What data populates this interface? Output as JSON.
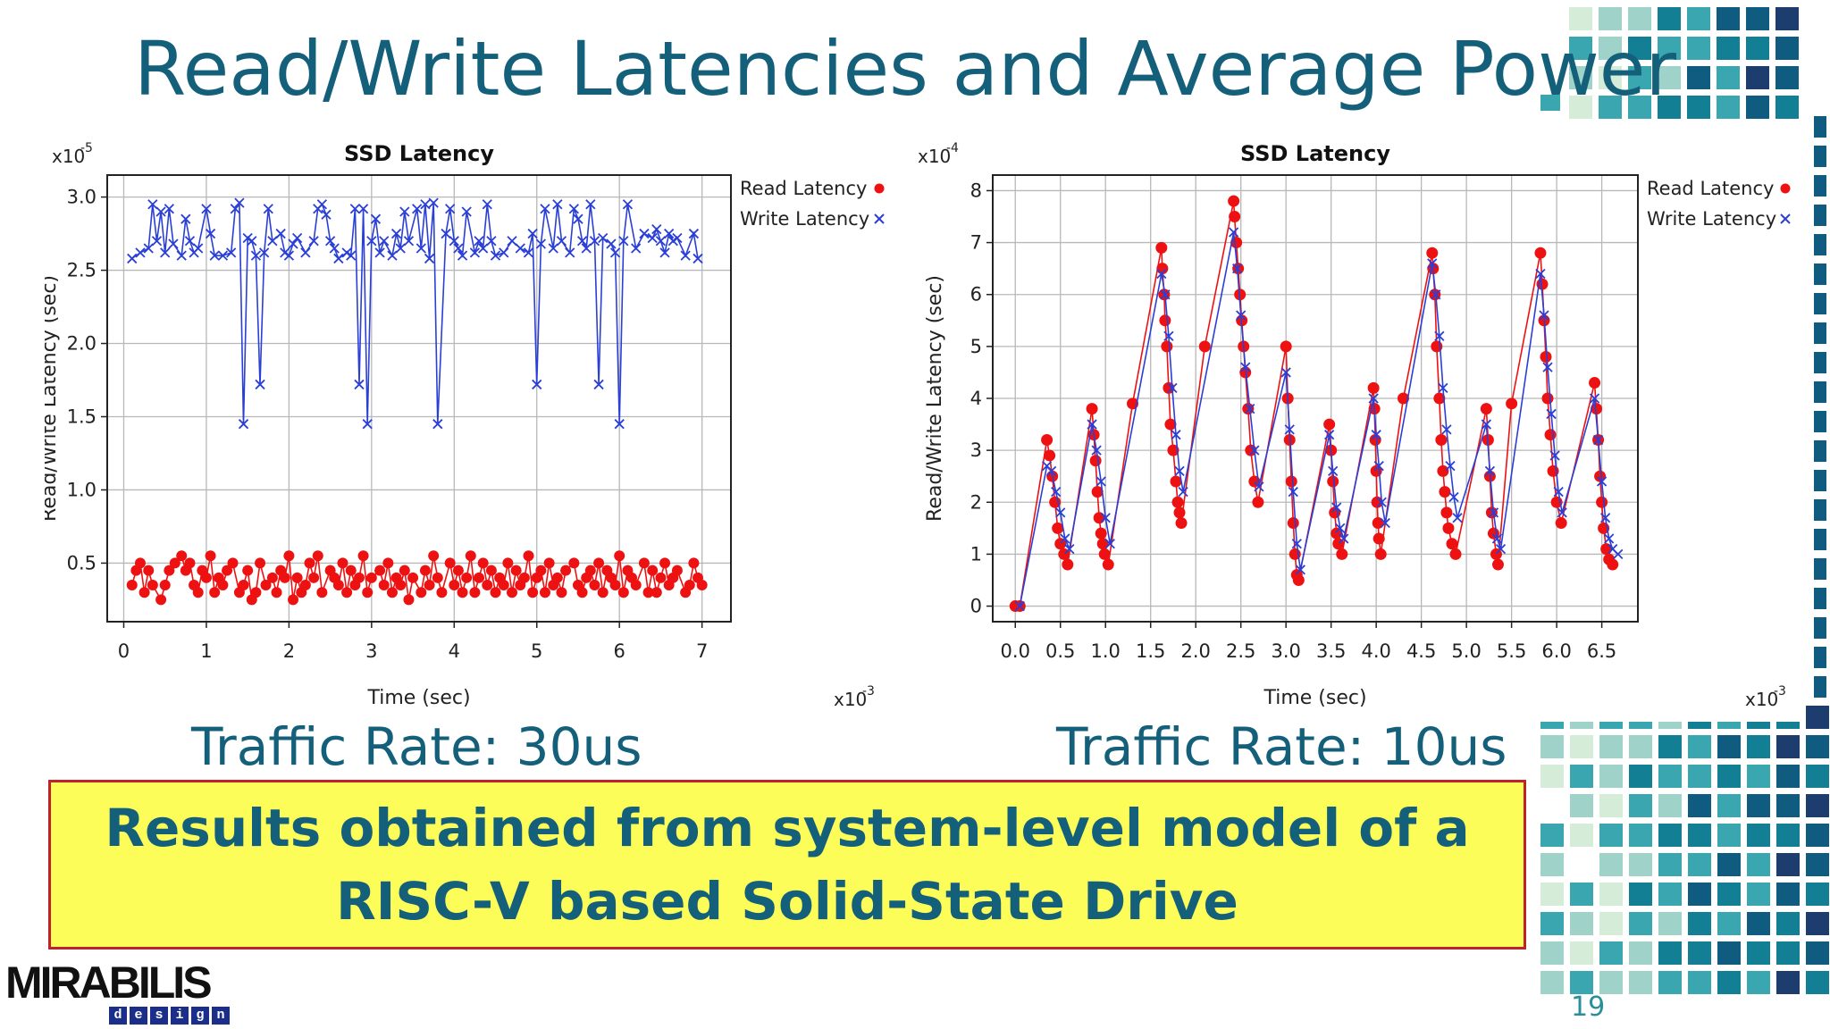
{
  "slide": {
    "title": "Read/Write Latencies and Average Power",
    "caption_left": "Traffic Rate: 30us",
    "caption_right": "Traffic Rate: 10us",
    "banner_text": "Results obtained from system-level model of a RISC-V based Solid-State Drive",
    "logo_text": "MIRABILIS",
    "logo_subtext": [
      "d",
      "e",
      "s",
      "i",
      "g",
      "n"
    ],
    "page_number": "19",
    "colors": {
      "title": "#14607a",
      "banner_bg": "#fdfd5a",
      "banner_border": "#c0222b",
      "read": "#ee1111",
      "write": "#2a3fd6"
    }
  },
  "chart_data": [
    {
      "type": "line",
      "title": "SSD Latency",
      "xlabel": "Time (sec)",
      "ylabel": "Read/Write Latency (sec)",
      "x_multiplier": "x10",
      "x_exponent": "-3",
      "y_multiplier": "x10",
      "y_exponent": "-5",
      "xlim": [
        -0.2,
        7.35
      ],
      "ylim": [
        0.1,
        3.15
      ],
      "xticks": [
        0,
        1,
        2,
        3,
        4,
        5,
        6,
        7
      ],
      "xtick_labels": [
        "0",
        "1",
        "2",
        "3",
        "4",
        "5",
        "6",
        "7"
      ],
      "yticks": [
        0.5,
        1.0,
        1.5,
        2.0,
        2.5,
        3.0
      ],
      "ytick_labels": [
        "0.5",
        "1.0",
        "1.5",
        "2.0",
        "2.5",
        "3.0"
      ],
      "grid": true,
      "legend_position": "right",
      "series": [
        {
          "name": "Read Latency",
          "marker": "dot",
          "color": "#ee1111",
          "x": [
            0.1,
            0.15,
            0.2,
            0.25,
            0.3,
            0.35,
            0.45,
            0.5,
            0.55,
            0.62,
            0.7,
            0.75,
            0.8,
            0.85,
            0.9,
            0.95,
            1.0,
            1.05,
            1.1,
            1.15,
            1.2,
            1.25,
            1.32,
            1.4,
            1.45,
            1.5,
            1.55,
            1.6,
            1.65,
            1.72,
            1.8,
            1.85,
            1.9,
            1.95,
            2.0,
            2.05,
            2.1,
            2.15,
            2.2,
            2.25,
            2.3,
            2.35,
            2.4,
            2.5,
            2.55,
            2.6,
            2.65,
            2.7,
            2.75,
            2.8,
            2.85,
            2.9,
            2.95,
            3.0,
            3.1,
            3.15,
            3.2,
            3.25,
            3.3,
            3.35,
            3.4,
            3.45,
            3.5,
            3.6,
            3.65,
            3.7,
            3.75,
            3.8,
            3.85,
            3.95,
            4.0,
            4.05,
            4.1,
            4.15,
            4.2,
            4.25,
            4.3,
            4.35,
            4.4,
            4.45,
            4.5,
            4.55,
            4.6,
            4.65,
            4.7,
            4.75,
            4.8,
            4.85,
            4.9,
            4.95,
            5.0,
            5.05,
            5.1,
            5.15,
            5.2,
            5.25,
            5.3,
            5.35,
            5.45,
            5.5,
            5.55,
            5.6,
            5.65,
            5.7,
            5.75,
            5.8,
            5.85,
            5.9,
            5.95,
            6.0,
            6.05,
            6.1,
            6.15,
            6.2,
            6.3,
            6.35,
            6.4,
            6.45,
            6.5,
            6.55,
            6.6,
            6.65,
            6.7,
            6.8,
            6.85,
            6.9,
            6.95,
            7.0
          ],
          "y": [
            0.35,
            0.45,
            0.5,
            0.3,
            0.45,
            0.35,
            0.25,
            0.35,
            0.45,
            0.5,
            0.55,
            0.45,
            0.5,
            0.35,
            0.3,
            0.45,
            0.4,
            0.55,
            0.3,
            0.4,
            0.35,
            0.45,
            0.5,
            0.3,
            0.35,
            0.45,
            0.25,
            0.3,
            0.5,
            0.35,
            0.4,
            0.3,
            0.45,
            0.4,
            0.55,
            0.25,
            0.4,
            0.3,
            0.35,
            0.5,
            0.4,
            0.55,
            0.3,
            0.45,
            0.4,
            0.35,
            0.5,
            0.3,
            0.45,
            0.35,
            0.4,
            0.55,
            0.3,
            0.4,
            0.45,
            0.35,
            0.5,
            0.3,
            0.4,
            0.35,
            0.45,
            0.25,
            0.4,
            0.3,
            0.45,
            0.35,
            0.55,
            0.4,
            0.3,
            0.5,
            0.35,
            0.45,
            0.3,
            0.4,
            0.55,
            0.3,
            0.4,
            0.5,
            0.35,
            0.45,
            0.3,
            0.4,
            0.35,
            0.5,
            0.3,
            0.45,
            0.35,
            0.4,
            0.55,
            0.3,
            0.4,
            0.45,
            0.3,
            0.5,
            0.35,
            0.4,
            0.3,
            0.45,
            0.5,
            0.35,
            0.3,
            0.4,
            0.45,
            0.35,
            0.5,
            0.3,
            0.45,
            0.4,
            0.35,
            0.55,
            0.3,
            0.45,
            0.4,
            0.35,
            0.5,
            0.3,
            0.45,
            0.3,
            0.4,
            0.5,
            0.35,
            0.4,
            0.45,
            0.3,
            0.35,
            0.5,
            0.4,
            0.35
          ]
        },
        {
          "name": "Write Latency",
          "marker": "x",
          "color": "#2a3fd6",
          "x": [
            0.1,
            0.2,
            0.3,
            0.35,
            0.4,
            0.45,
            0.5,
            0.55,
            0.6,
            0.7,
            0.75,
            0.8,
            0.85,
            0.9,
            1.0,
            1.05,
            1.1,
            1.2,
            1.3,
            1.35,
            1.4,
            1.45,
            1.5,
            1.55,
            1.6,
            1.65,
            1.7,
            1.75,
            1.8,
            1.9,
            1.95,
            2.0,
            2.05,
            2.1,
            2.2,
            2.3,
            2.35,
            2.4,
            2.45,
            2.5,
            2.55,
            2.6,
            2.7,
            2.75,
            2.8,
            2.85,
            2.9,
            2.95,
            3.0,
            3.05,
            3.1,
            3.15,
            3.25,
            3.3,
            3.35,
            3.4,
            3.45,
            3.55,
            3.6,
            3.65,
            3.7,
            3.75,
            3.8,
            3.9,
            3.95,
            4.0,
            4.05,
            4.1,
            4.15,
            4.25,
            4.3,
            4.35,
            4.4,
            4.45,
            4.5,
            4.6,
            4.7,
            4.8,
            4.9,
            4.95,
            5.0,
            5.05,
            5.1,
            5.2,
            5.25,
            5.3,
            5.4,
            5.45,
            5.5,
            5.55,
            5.6,
            5.65,
            5.7,
            5.75,
            5.8,
            5.9,
            5.95,
            6.0,
            6.05,
            6.1,
            6.2,
            6.3,
            6.4,
            6.45,
            6.5,
            6.55,
            6.6,
            6.65,
            6.7,
            6.8,
            6.9,
            6.95
          ],
          "y": [
            2.58,
            2.62,
            2.65,
            2.95,
            2.7,
            2.9,
            2.62,
            2.92,
            2.68,
            2.6,
            2.85,
            2.7,
            2.62,
            2.65,
            2.92,
            2.75,
            2.6,
            2.6,
            2.62,
            2.92,
            2.96,
            1.45,
            2.72,
            2.7,
            2.6,
            1.72,
            2.62,
            2.92,
            2.7,
            2.75,
            2.62,
            2.6,
            2.68,
            2.72,
            2.62,
            2.7,
            2.92,
            2.95,
            2.88,
            2.7,
            2.65,
            2.58,
            2.62,
            2.6,
            2.92,
            1.72,
            2.92,
            1.45,
            2.7,
            2.85,
            2.62,
            2.7,
            2.6,
            2.75,
            2.65,
            2.9,
            2.7,
            2.92,
            2.65,
            2.95,
            2.58,
            2.96,
            1.45,
            2.75,
            2.92,
            2.7,
            2.65,
            2.6,
            2.9,
            2.62,
            2.7,
            2.65,
            2.95,
            2.7,
            2.6,
            2.62,
            2.7,
            2.65,
            2.62,
            2.75,
            1.72,
            2.68,
            2.92,
            2.65,
            2.95,
            2.7,
            2.62,
            2.92,
            2.85,
            2.7,
            2.65,
            2.95,
            2.7,
            1.72,
            2.72,
            2.68,
            2.62,
            1.45,
            2.7,
            2.95,
            2.65,
            2.75,
            2.72,
            2.78,
            2.7,
            2.62,
            2.75,
            2.7,
            2.72,
            2.6,
            2.75,
            2.58
          ]
        }
      ]
    },
    {
      "type": "line",
      "title": "SSD Latency",
      "xlabel": "Time (sec)",
      "ylabel": "Read/Write Latency (sec)",
      "x_multiplier": "x10",
      "x_exponent": "-3",
      "y_multiplier": "x10",
      "y_exponent": "-4",
      "xlim": [
        -0.25,
        6.9
      ],
      "ylim": [
        -0.3,
        8.3
      ],
      "xticks": [
        0.0,
        0.5,
        1.0,
        1.5,
        2.0,
        2.5,
        3.0,
        3.5,
        4.0,
        4.5,
        5.0,
        5.5,
        6.0,
        6.5
      ],
      "xtick_labels": [
        "0.0",
        "0.5",
        "1.0",
        "1.5",
        "2.0",
        "2.5",
        "3.0",
        "3.5",
        "4.0",
        "4.5",
        "5.0",
        "5.5",
        "6.0",
        "6.5"
      ],
      "yticks": [
        0,
        1,
        2,
        3,
        4,
        5,
        6,
        7,
        8
      ],
      "ytick_labels": [
        "0",
        "1",
        "2",
        "3",
        "4",
        "5",
        "6",
        "7",
        "8"
      ],
      "grid": true,
      "legend_position": "right",
      "series": [
        {
          "name": "Read Latency",
          "marker": "dot",
          "color": "#ee1111",
          "x": [
            0.0,
            0.05,
            0.35,
            0.38,
            0.41,
            0.44,
            0.47,
            0.5,
            0.54,
            0.58,
            0.85,
            0.87,
            0.89,
            0.91,
            0.93,
            0.95,
            0.97,
            0.99,
            1.03,
            1.3,
            1.62,
            1.63,
            1.65,
            1.66,
            1.68,
            1.7,
            1.72,
            1.75,
            1.78,
            1.8,
            1.82,
            1.84,
            2.1,
            2.42,
            2.43,
            2.45,
            2.47,
            2.49,
            2.51,
            2.53,
            2.55,
            2.58,
            2.61,
            2.65,
            2.69,
            3.0,
            3.02,
            3.04,
            3.06,
            3.08,
            3.1,
            3.12,
            3.14,
            3.48,
            3.5,
            3.52,
            3.54,
            3.56,
            3.58,
            3.62,
            3.97,
            3.98,
            3.99,
            4.0,
            4.01,
            4.02,
            4.03,
            4.05,
            4.3,
            4.62,
            4.63,
            4.65,
            4.67,
            4.7,
            4.72,
            4.74,
            4.76,
            4.78,
            4.8,
            4.84,
            4.88,
            5.22,
            5.24,
            5.26,
            5.28,
            5.3,
            5.33,
            5.35,
            5.5,
            5.82,
            5.84,
            5.86,
            5.88,
            5.9,
            5.93,
            5.96,
            6.0,
            6.05,
            6.42,
            6.44,
            6.46,
            6.48,
            6.5,
            6.52,
            6.55,
            6.58,
            6.62
          ],
          "y": [
            0.0,
            0.0,
            3.2,
            2.9,
            2.5,
            2.0,
            1.5,
            1.2,
            1.0,
            0.8,
            3.8,
            3.3,
            2.8,
            2.2,
            1.7,
            1.4,
            1.2,
            1.0,
            0.8,
            3.9,
            6.9,
            6.5,
            6.0,
            5.5,
            5.0,
            4.2,
            3.5,
            3.0,
            2.4,
            2.0,
            1.8,
            1.6,
            5.0,
            7.8,
            7.5,
            7.0,
            6.5,
            6.0,
            5.5,
            5.0,
            4.5,
            3.8,
            3.0,
            2.4,
            2.0,
            5.0,
            4.0,
            3.2,
            2.4,
            1.6,
            1.0,
            0.6,
            0.5,
            3.5,
            3.0,
            2.4,
            1.8,
            1.4,
            1.2,
            1.0,
            4.2,
            3.8,
            3.2,
            2.6,
            2.0,
            1.6,
            1.3,
            1.0,
            4.0,
            6.8,
            6.5,
            6.0,
            5.0,
            4.0,
            3.2,
            2.6,
            2.2,
            1.8,
            1.5,
            1.2,
            1.0,
            3.8,
            3.2,
            2.5,
            1.8,
            1.4,
            1.0,
            0.8,
            3.9,
            6.8,
            6.2,
            5.5,
            4.8,
            4.0,
            3.3,
            2.6,
            2.0,
            1.6,
            4.3,
            3.8,
            3.2,
            2.5,
            2.0,
            1.5,
            1.1,
            0.9,
            0.8
          ],
          "dense": true
        },
        {
          "name": "Write Latency",
          "marker": "x",
          "color": "#2a3fd6",
          "x": [
            0.05,
            0.35,
            0.4,
            0.45,
            0.5,
            0.55,
            0.6,
            0.85,
            0.9,
            0.95,
            1.0,
            1.05,
            1.62,
            1.66,
            1.7,
            1.74,
            1.78,
            1.82,
            1.86,
            2.42,
            2.46,
            2.5,
            2.55,
            2.6,
            2.65,
            2.7,
            3.0,
            3.04,
            3.08,
            3.12,
            3.16,
            3.48,
            3.52,
            3.56,
            3.6,
            3.64,
            3.97,
            4.0,
            4.03,
            4.06,
            4.1,
            4.62,
            4.66,
            4.7,
            4.74,
            4.78,
            4.82,
            4.86,
            4.9,
            5.22,
            5.26,
            5.3,
            5.34,
            5.38,
            5.82,
            5.86,
            5.9,
            5.94,
            5.98,
            6.02,
            6.06,
            6.42,
            6.46,
            6.5,
            6.54,
            6.58,
            6.62,
            6.68
          ],
          "y": [
            0.0,
            2.7,
            2.6,
            2.2,
            1.8,
            1.3,
            1.1,
            3.5,
            3.0,
            2.4,
            1.7,
            1.2,
            6.4,
            6.0,
            5.2,
            4.2,
            3.3,
            2.6,
            2.2,
            7.2,
            6.5,
            5.6,
            4.6,
            3.8,
            3.0,
            2.3,
            4.5,
            3.4,
            2.2,
            1.2,
            0.7,
            3.3,
            2.6,
            1.9,
            1.5,
            1.3,
            4.0,
            3.3,
            2.7,
            2.0,
            1.6,
            6.6,
            6.0,
            5.2,
            4.2,
            3.4,
            2.7,
            2.1,
            1.7,
            3.5,
            2.6,
            1.8,
            1.3,
            1.1,
            6.4,
            5.6,
            4.6,
            3.7,
            2.9,
            2.2,
            1.8,
            4.0,
            3.2,
            2.4,
            1.7,
            1.3,
            1.1,
            1.0
          ]
        }
      ]
    }
  ]
}
